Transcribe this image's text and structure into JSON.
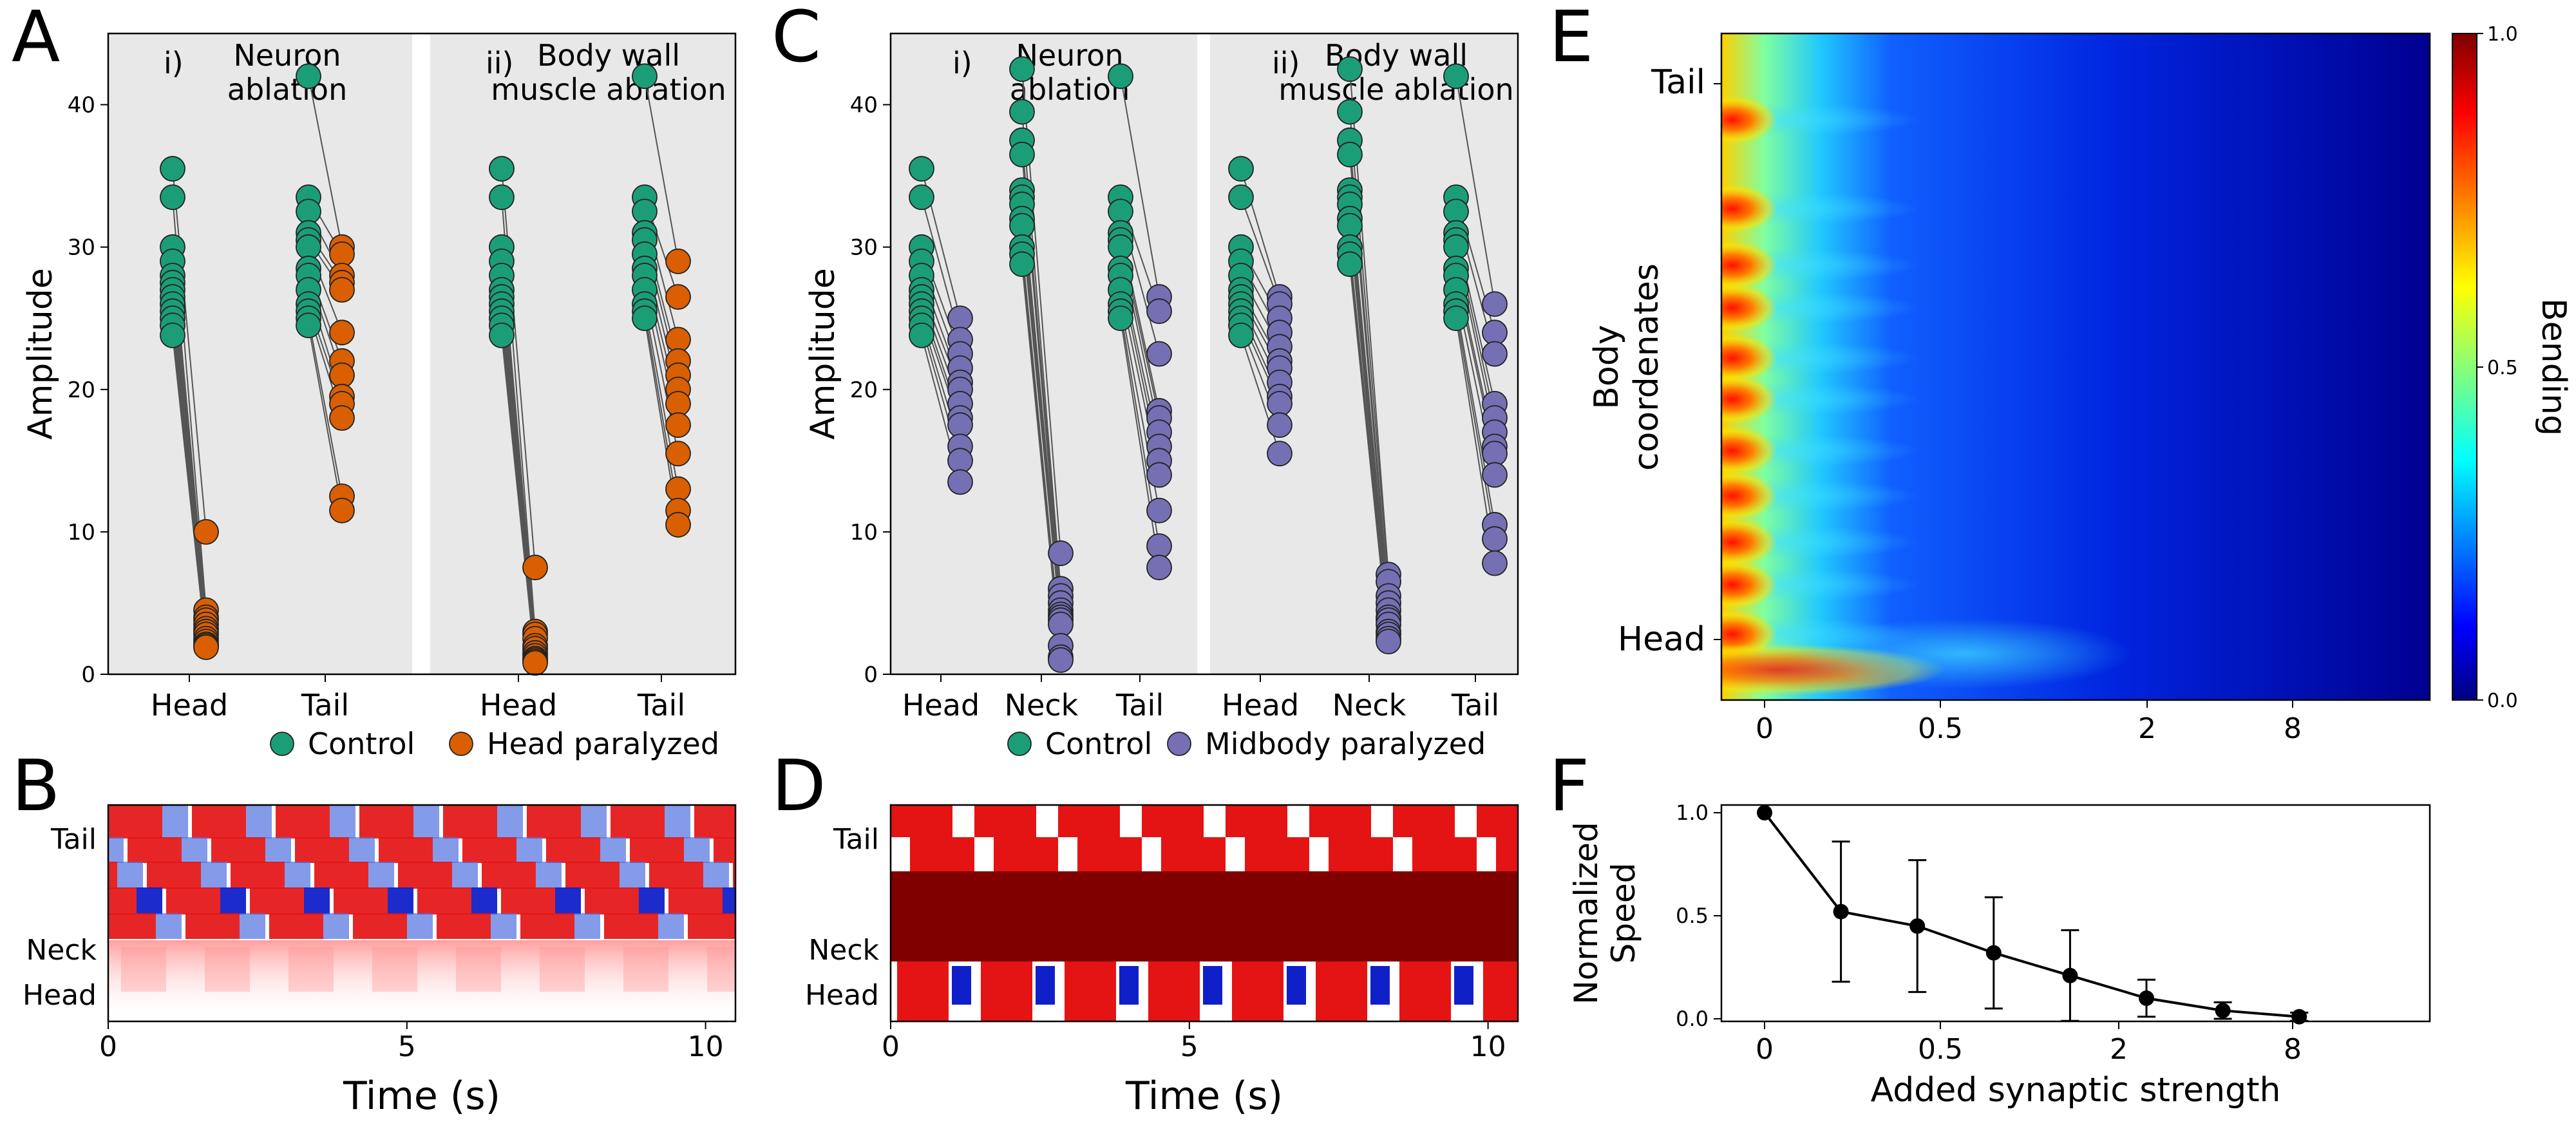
{
  "figure": {
    "panel_letters": [
      "A",
      "B",
      "C",
      "D",
      "E",
      "F"
    ]
  },
  "colors": {
    "control": "#1b9e77",
    "head_paralyzed": "#d95f02",
    "midbody_paralyzed": "#7570b3",
    "panel_bg": "#e8e8e8",
    "point_stroke": "#222222",
    "line": "#555555"
  },
  "chart_data": [
    {
      "id": "A",
      "type": "scatter",
      "ylabel": "Amplitude",
      "ylim": [
        0,
        45
      ],
      "yticks": [
        0,
        10,
        20,
        30,
        40
      ],
      "legend": {
        "entries": [
          "Control",
          "Head paralyzed"
        ],
        "placement": "bottom"
      },
      "subpanels": [
        {
          "roman": "i)",
          "title": [
            "Neuron",
            "ablation"
          ],
          "shaded": true,
          "groups": [
            {
              "label": "Head",
              "control": [
                35.5,
                33.5,
                30,
                29,
                28,
                27.5,
                27,
                26.5,
                26,
                25.5,
                25,
                24.5,
                23.8
              ],
              "treated": [
                10,
                4.5,
                4,
                3.8,
                3.5,
                3.2,
                3,
                2.8,
                2.5,
                2.3,
                2.1,
                2,
                1.9
              ]
            },
            {
              "label": "Tail",
              "control": [
                42,
                33.5,
                32.5,
                31,
                30.5,
                30,
                28.5,
                28,
                27,
                26,
                25.5,
                25,
                24.5
              ],
              "treated": [
                30,
                29.5,
                28,
                27.5,
                27,
                24,
                22,
                21,
                19.5,
                19,
                18,
                12.5,
                11.5
              ]
            }
          ]
        },
        {
          "roman": "ii)",
          "title": [
            "Body wall",
            "muscle ablation"
          ],
          "shaded": true,
          "groups": [
            {
              "label": "Head",
              "control": [
                35.5,
                33.5,
                30,
                29,
                28,
                27,
                26.5,
                26,
                25.5,
                25,
                24.5,
                23.8
              ],
              "treated": [
                7.5,
                3,
                2.8,
                2.5,
                2,
                1.8,
                1.5,
                1.3,
                1.1,
                1,
                0.9,
                0.8
              ]
            },
            {
              "label": "Tail",
              "control": [
                42,
                33.5,
                32.5,
                31,
                30.5,
                29.5,
                28.5,
                28,
                27,
                26,
                25.5,
                25
              ],
              "treated": [
                29,
                26.5,
                23.5,
                22,
                21,
                20,
                19,
                17.5,
                15.5,
                13,
                11.5,
                10.5
              ]
            }
          ]
        }
      ]
    },
    {
      "id": "C",
      "type": "scatter",
      "ylabel": "Amplitude",
      "ylim": [
        0,
        45
      ],
      "yticks": [
        0,
        10,
        20,
        30,
        40
      ],
      "legend": {
        "entries": [
          "Control",
          "Midbody paralyzed"
        ],
        "placement": "bottom"
      },
      "subpanels": [
        {
          "roman": "i)",
          "title": [
            "Neuron",
            "ablation"
          ],
          "shaded": true,
          "groups": [
            {
              "label": "Head",
              "control": [
                35.5,
                33.5,
                30,
                29,
                28,
                27,
                26.5,
                26,
                25.5,
                25,
                24.5,
                23.8
              ],
              "treated": [
                25,
                23.5,
                22.5,
                21.5,
                20.5,
                20,
                19,
                18,
                17.5,
                16,
                15,
                13.5
              ]
            },
            {
              "label": "Neck",
              "control": [
                42.5,
                39.5,
                37.5,
                36.5,
                34,
                33.5,
                33,
                32,
                31.5,
                30,
                29.5,
                28.8
              ],
              "treated": [
                8.5,
                6,
                5.5,
                5,
                4.5,
                4.2,
                4,
                3.8,
                3.5,
                2,
                1.2,
                1
              ]
            },
            {
              "label": "Tail",
              "control": [
                42,
                33.5,
                32.5,
                31,
                30.5,
                30,
                28.5,
                28,
                27,
                26,
                25.5,
                25
              ],
              "treated": [
                26.5,
                25.5,
                22.5,
                18.5,
                18,
                17,
                16,
                15,
                14,
                11.5,
                9,
                7.5
              ]
            }
          ]
        },
        {
          "roman": "ii)",
          "title": [
            "Body wall",
            "muscle ablation"
          ],
          "shaded": true,
          "groups": [
            {
              "label": "Head",
              "control": [
                35.5,
                33.5,
                30,
                29,
                28,
                27,
                26.5,
                26,
                25.5,
                25,
                24.5,
                23.8
              ],
              "treated": [
                26.5,
                26,
                25,
                24,
                23,
                22,
                21.5,
                20.5,
                19.5,
                19,
                17.5,
                15.5
              ]
            },
            {
              "label": "Neck",
              "control": [
                42.5,
                39.5,
                37.5,
                36.5,
                34,
                33.5,
                33,
                32,
                31.5,
                30,
                29.5,
                28.8
              ],
              "treated": [
                7,
                6.5,
                5.5,
                5,
                4.5,
                4,
                3.8,
                3.5,
                3,
                2.8,
                2.5,
                2.3
              ]
            },
            {
              "label": "Tail",
              "control": [
                42,
                33.5,
                32.5,
                31,
                30.5,
                30,
                28.5,
                28,
                27,
                26,
                25.5,
                25
              ],
              "treated": [
                26,
                24,
                22.5,
                19,
                18,
                17,
                16,
                15.5,
                14,
                10.5,
                9.5,
                7.8
              ]
            }
          ]
        }
      ]
    },
    {
      "id": "B",
      "type": "heatmap",
      "xlabel": "Time (s)",
      "xlim": [
        0,
        10.5
      ],
      "xticks": [
        0,
        5,
        10
      ],
      "ylabels": [
        "Tail",
        "Neck",
        "Head"
      ],
      "colormap": "bwr"
    },
    {
      "id": "D",
      "type": "heatmap",
      "xlabel": "Time (s)",
      "xlim": [
        0,
        10.5
      ],
      "xticks": [
        0,
        5,
        10
      ],
      "ylabels": [
        "Tail",
        "Neck",
        "Head"
      ],
      "colormap": "bwr"
    },
    {
      "id": "E",
      "type": "heatmap",
      "ylabel": [
        "Body",
        "coordenates"
      ],
      "ylabels": [
        "Tail",
        "Head"
      ],
      "xticks": [
        "0",
        "0.5",
        "2",
        "8"
      ],
      "colorbar": {
        "label": "Bending",
        "ticks": [
          "0.0",
          "0.5",
          "1.0"
        ],
        "colormap": "jet",
        "range": [
          0,
          1
        ]
      }
    },
    {
      "id": "F",
      "type": "line",
      "xlabel": "Added synaptic strength",
      "ylabel": [
        "Normalized",
        "Speed"
      ],
      "ylim": [
        0,
        1
      ],
      "yticks": [
        "0.0",
        "0.5",
        "1.0"
      ],
      "xticks": [
        "0",
        "0.5",
        "2",
        "8"
      ],
      "x": [
        0,
        1,
        2,
        3,
        4,
        5,
        6,
        7
      ],
      "values": [
        1.0,
        0.52,
        0.45,
        0.32,
        0.21,
        0.1,
        0.04,
        0.01
      ],
      "err": [
        0.0,
        0.34,
        0.32,
        0.27,
        0.22,
        0.09,
        0.04,
        0.02
      ]
    }
  ]
}
